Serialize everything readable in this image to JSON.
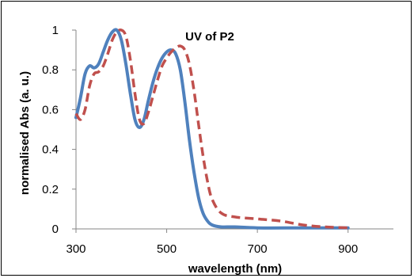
{
  "chart_data": {
    "type": "line",
    "title": "UV of P2",
    "xlabel": "wavelength (nm)",
    "ylabel": "normalised Abs (a. u.)",
    "xlim": [
      300,
      1000
    ],
    "ylim": [
      0,
      1
    ],
    "xticks": [
      300,
      500,
      700,
      900
    ],
    "yticks": [
      0,
      0.2,
      0.4,
      0.6,
      0.8,
      1
    ],
    "ytick_labels": [
      "0",
      "0.2",
      "0.4",
      "0.6",
      "0.8",
      "1"
    ],
    "grid": false,
    "legend": "none",
    "series": [
      {
        "color": "#4F81BD",
        "style": "solid",
        "x": [
          300,
          310,
          320,
          330,
          340,
          350,
          360,
          370,
          380,
          390,
          400,
          410,
          420,
          430,
          440,
          450,
          460,
          470,
          480,
          490,
          500,
          510,
          520,
          530,
          540,
          550,
          560,
          570,
          580,
          590,
          600,
          620,
          650,
          700,
          800,
          900
        ],
        "y": [
          0.56,
          0.66,
          0.78,
          0.82,
          0.81,
          0.83,
          0.89,
          0.95,
          0.99,
          1.0,
          0.95,
          0.83,
          0.68,
          0.55,
          0.51,
          0.55,
          0.65,
          0.74,
          0.81,
          0.86,
          0.89,
          0.9,
          0.88,
          0.8,
          0.64,
          0.45,
          0.29,
          0.16,
          0.08,
          0.04,
          0.02,
          0.01,
          0.01,
          0.005,
          0.005,
          0.005
        ]
      },
      {
        "color": "#C0504D",
        "style": "dashed",
        "x": [
          300,
          310,
          320,
          330,
          340,
          350,
          360,
          370,
          380,
          390,
          400,
          410,
          420,
          430,
          440,
          450,
          460,
          470,
          480,
          490,
          500,
          510,
          520,
          530,
          540,
          550,
          560,
          570,
          580,
          590,
          600,
          620,
          650,
          700,
          750,
          800,
          850,
          900
        ],
        "y": [
          0.58,
          0.55,
          0.6,
          0.72,
          0.78,
          0.79,
          0.82,
          0.88,
          0.95,
          0.99,
          1.0,
          0.97,
          0.85,
          0.68,
          0.55,
          0.53,
          0.59,
          0.67,
          0.75,
          0.82,
          0.86,
          0.89,
          0.91,
          0.92,
          0.9,
          0.83,
          0.7,
          0.53,
          0.37,
          0.24,
          0.15,
          0.08,
          0.06,
          0.05,
          0.04,
          0.02,
          0.01,
          0.005
        ]
      }
    ]
  }
}
